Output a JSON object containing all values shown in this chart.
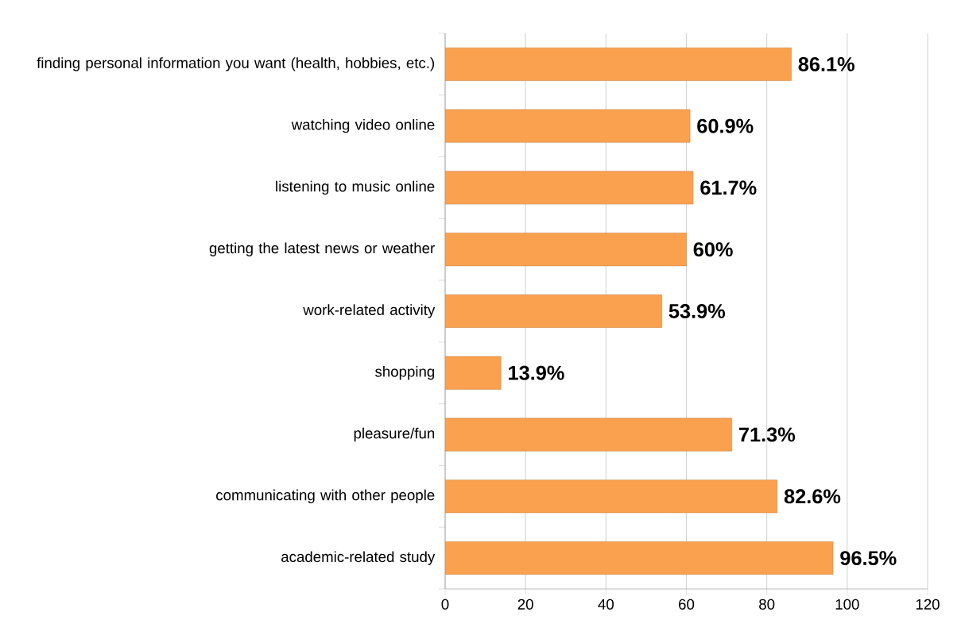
{
  "chart_data": {
    "type": "bar",
    "orientation": "horizontal",
    "categories": [
      "finding personal information you want (health, hobbies, etc.)",
      "watching video online",
      "listening to music online",
      "getting the latest news or weather",
      "work-related activity",
      "shopping",
      "pleasure/fun",
      "communicating with other people",
      "academic-related study"
    ],
    "values": [
      86.1,
      60.9,
      61.7,
      60,
      53.9,
      13.9,
      71.3,
      82.6,
      96.5
    ],
    "value_labels": [
      "86.1%",
      "60.9%",
      "61.7%",
      "60%",
      "53.9%",
      "13.9%",
      "71.3%",
      "82.6%",
      "96.5%"
    ],
    "color": "#f9a14f",
    "xlim": [
      0,
      120
    ],
    "xticks": [
      0,
      20,
      40,
      60,
      80,
      100,
      120
    ],
    "grid": "x"
  }
}
